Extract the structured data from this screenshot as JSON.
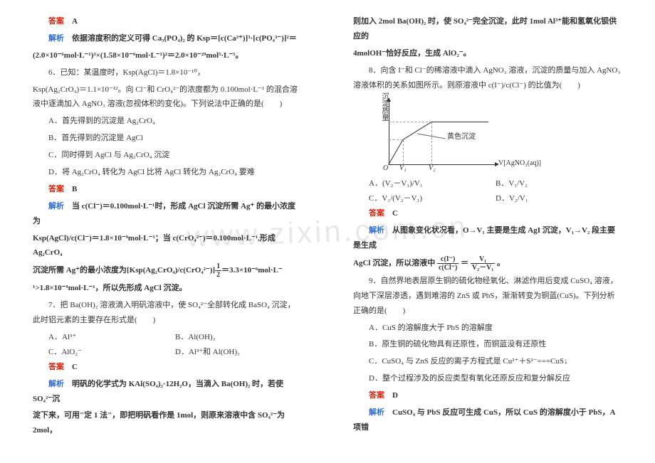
{
  "watermark": "www.zixin.com.cn",
  "labels": {
    "answer": "答案",
    "analysis": "解析"
  },
  "left": {
    "ans5": "A",
    "ana5_p1": "依据溶度积的定义可得 Ca₃(PO₄)₂ 的 Ksp＝[c(Ca²⁺)]³·[c(PO₄³⁻)]²＝",
    "ana5_p2": "(2.0×10⁻⁶mol·L⁻¹)³×(1.58×10⁻⁶mol·L⁻¹)²＝2.0×10⁻²⁹mol⁵·L⁻⁵。",
    "q6_p1": "6．已知：某温度时，Ksp(AgCl)＝1.8×10⁻¹⁰，",
    "q6_p2": "Ksp(Ag₂CrO₄)＝1.1×10⁻¹²。向 Cl⁻和 CrO₄²⁻的浓度都为 0.100mol·L⁻¹ 的混合溶液中逐滴加入 AgNO₃ 溶液(忽视体积的变化)。下列说法中正确的是(　　)",
    "q6_A": "A．首先得到的沉淀是 Ag₂CrO₄",
    "q6_B": "B．首先得到的沉淀是 AgCl",
    "q6_C": "C．同时得到 AgCl 与 Ag₂CrO₄ 沉淀",
    "q6_D": "D．将 Ag₂CrO₄ 转化为 AgCl 比将 AgCl 转化为 Ag₂CrO₄ 要难",
    "ans6": "B",
    "ana6_p1": "当 c(Cl⁻)＝0.100mol·L⁻¹时，形成 AgCl 沉淀所需 Ag⁺ 的最小浓度为",
    "ana6_p2": "Ksp(AgCl)/c(Cl⁻)＝1.8×10⁻⁹mol·L⁻¹；当 c(CrO₄²⁻)＝0.100mol·L⁻¹,形成 Ag₂CrO₄",
    "ana6_p3_a": "沉淀所需 Ag⁺的最小浓度为[Ksp(Ag₂CrO₄)/c(CrO₄²⁻)]",
    "ana6_p3_frac_num": "1",
    "ana6_p3_frac_den": "2",
    "ana6_p3_b": "＝3.3×10⁻⁶mol·L⁻",
    "ana6_p4": "¹>1.8×10⁻⁹mol·L⁻¹，所以先形成 AgCl 沉淀。",
    "q7_p1": "7．把 Ba(OH)₂ 溶液滴入明矾溶液中，使 SO₄²⁻全部转化成 BaSO₄ 沉淀，此时铝元素的主要存在形式是(　　)",
    "q7_A": "A．Al³⁺",
    "q7_B": "B．Al(OH)₃",
    "q7_C": "C．AlO₂⁻",
    "q7_D": "D．Al³⁺和 Al(OH)₃",
    "ans7": "C",
    "ana7_p1": "明矾的化学式为 KAl(SO₄)₂·12H₂O，当滴入 Ba(OH)₂ 时，若使 SO₄²⁻沉",
    "ana7_p2": "淀下来，可用\"定 1 法\"，即把明矾看作是 1mol，则原来溶液中含 SO₄²⁻为 2mol，"
  },
  "right": {
    "cont7_p1": "则加入 2mol Ba(OH)₂ 时，使 SO₄²⁻完全沉淀，此时 1mol Al³⁺能和氢氧化钡供应的",
    "cont7_p2": "4molOH⁻恰好反应，生成 AlO₂⁻。",
    "q8_p1": "8．向含 I⁻和 Cl⁻的稀溶液中滴入 AgNO₃ 溶液，沉淀的质量与加入 AgNO₃ 溶液体积的关系如图所示。则原溶液中 c(I⁻)/c(Cl⁻) 的比值为(　　)",
    "chart": {
      "ylabel": "沉淀质量",
      "origin": "O",
      "v1": "V₁",
      "v2": "V₂",
      "xlabel": "V[AgNO₃(aq)]",
      "annotation": "黄色沉淀"
    },
    "q8_A": "A．(V₂－V₁)/V₁",
    "q8_B": "B．V₁/V₂",
    "q8_C": "C．V₁/(V₂－V₁)",
    "q8_D": "D．V₂/V₁",
    "ans8": "C",
    "ana8_p1": "从图象变化状况看，O→V₁ 主要是生成 AgI 沉淀，V₁→V₂ 段主要是生成",
    "ana8_p2_a": "AgCl 沉淀，所以溶液中",
    "ana8_frac1_num": "c(I⁻)",
    "ana8_frac1_den": "c(Cl⁻)",
    "ana8_eq": "＝",
    "ana8_frac2_num": "V₁",
    "ana8_frac2_den": "V₂－V₁",
    "ana8_p2_b": "。",
    "q9_p1": "9．自然界地表层原生铜的硫化物经氧化、淋滤作用后变成 CuSO₄ 溶液，向地下深层渗透，遇到难溶的 ZnS 或 PbS，渐渐转变为铜蓝(CuS)。下列分析正确的是(　　)",
    "q9_A": "A．CuS 的溶解度大于 PbS 的溶解度",
    "q9_B": "B．原生铜的硫化物具有还原性，而铜蓝没有还原性",
    "q9_C": "C．CuSO₄ 与 ZnS 反应的离子方程式是 Cu²⁺＋S²⁻===CuS↓",
    "q9_D": "D．整个过程涉及的反应类型有氧化还原反应和复分解反应",
    "ans9": "D",
    "ana9_p1": "CuSO₄ 与 PbS 反应可生成 CuS，所以 CuS 的溶解度小于 PbS，A 项错"
  }
}
